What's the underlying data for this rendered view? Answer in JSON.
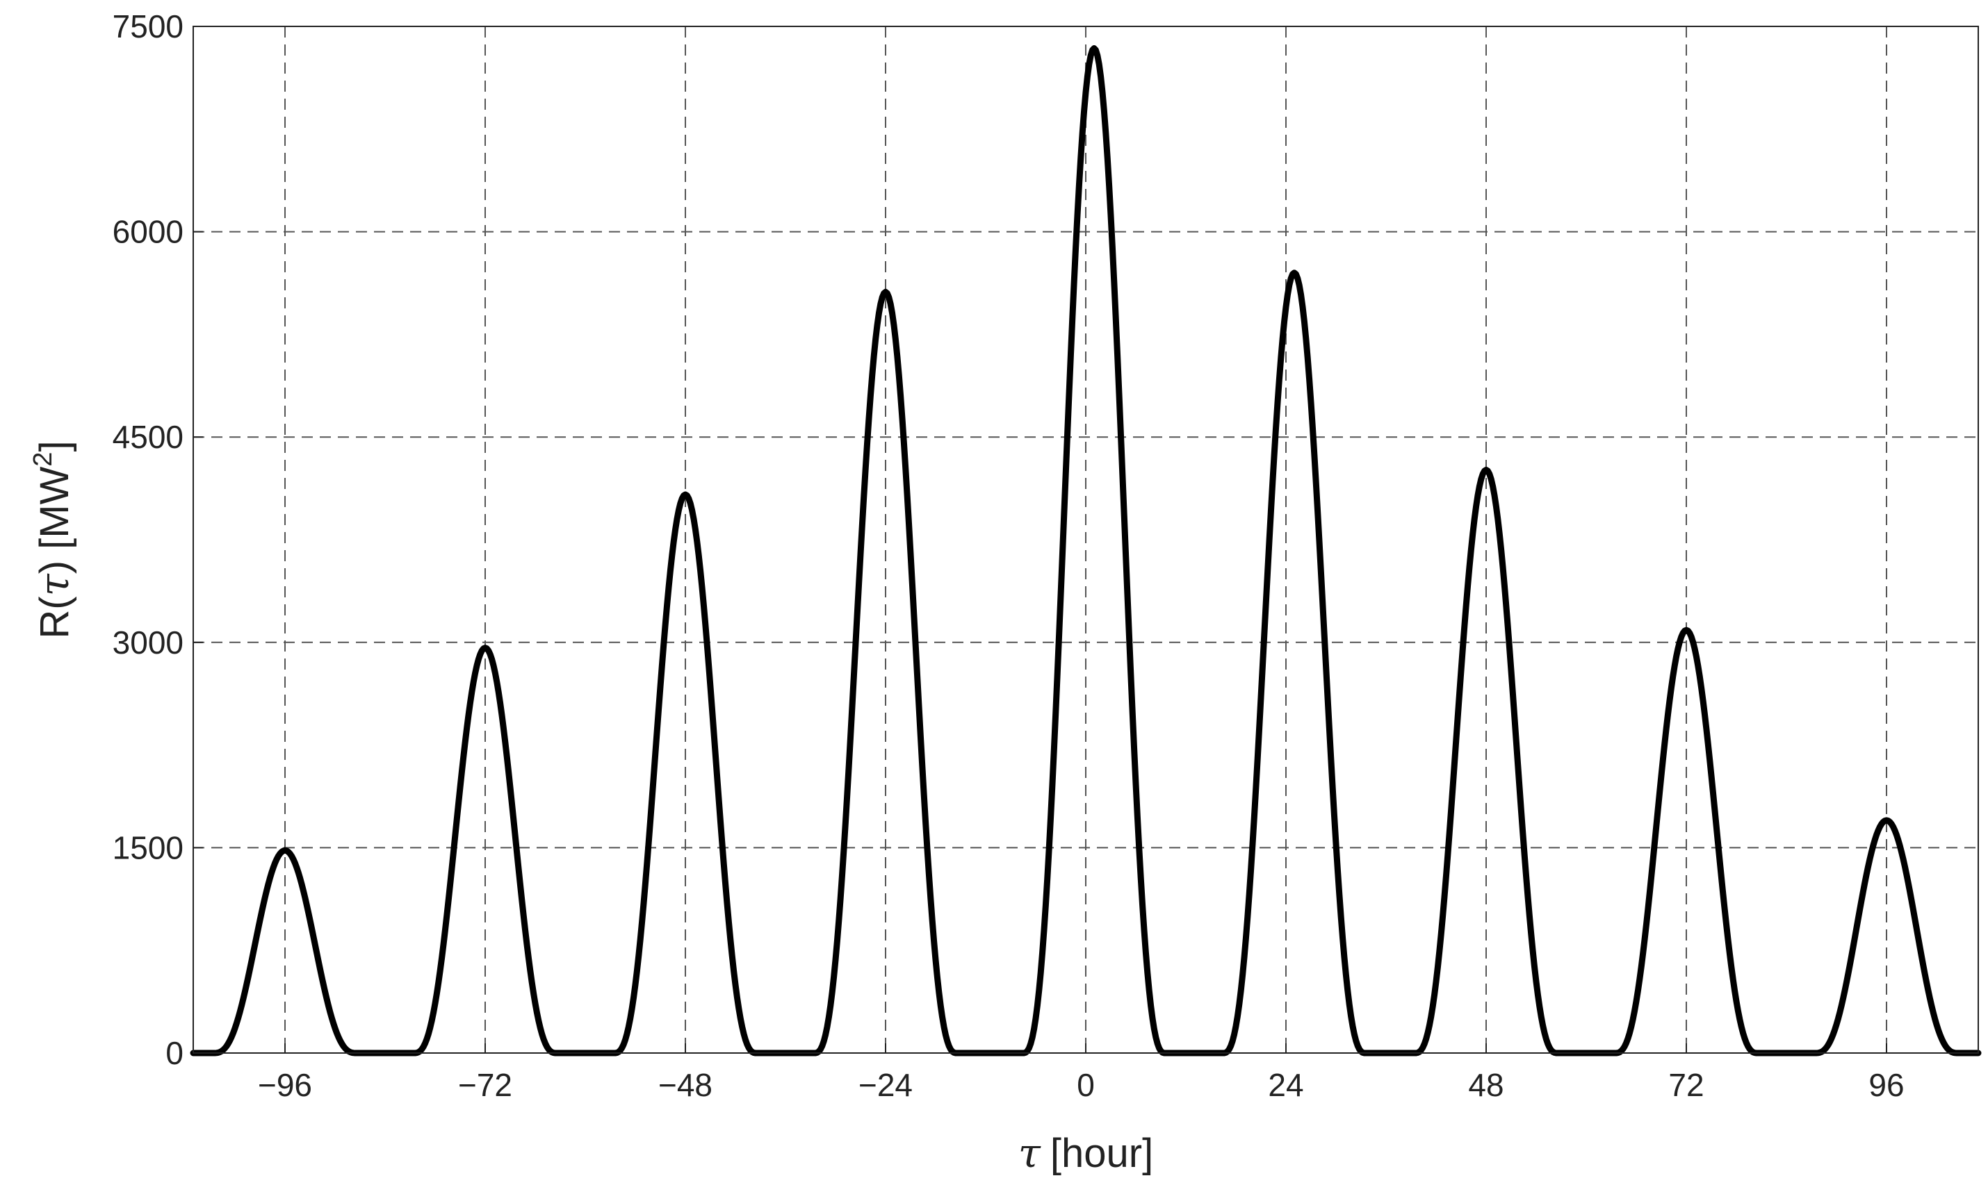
{
  "chart_data": {
    "type": "line",
    "xlabel": {
      "symbol": "τ",
      "unit": "[hour]"
    },
    "ylabel": {
      "prefix": "R(",
      "symbol": "τ",
      "suffix": ") [MW",
      "sup": "2",
      "close": "]"
    },
    "xlim": [
      -107,
      107
    ],
    "ylim": [
      0,
      7500
    ],
    "xticks": [
      -96,
      -72,
      -48,
      -24,
      0,
      24,
      48,
      72,
      96
    ],
    "xtick_labels": [
      "−96",
      "−72",
      "−48",
      "−24",
      "0",
      "24",
      "48",
      "72",
      "96"
    ],
    "yticks": [
      0,
      1500,
      3000,
      4500,
      6000,
      7500
    ],
    "ytick_labels": [
      "0",
      "1500",
      "3000",
      "4500",
      "6000",
      "7500"
    ],
    "grid": true,
    "grid_style": "dashed",
    "line_color": "#000000",
    "series": [
      {
        "peaks": [
          {
            "x": -96,
            "y": 1480
          },
          {
            "x": -72,
            "y": 2960
          },
          {
            "x": -48,
            "y": 4080
          },
          {
            "x": -24,
            "y": 5560
          },
          {
            "x": 1,
            "y": 7340
          },
          {
            "x": 25,
            "y": 5700
          },
          {
            "x": 48,
            "y": 4260
          },
          {
            "x": 72,
            "y": 3090
          },
          {
            "x": 96,
            "y": 1700
          }
        ]
      }
    ]
  }
}
